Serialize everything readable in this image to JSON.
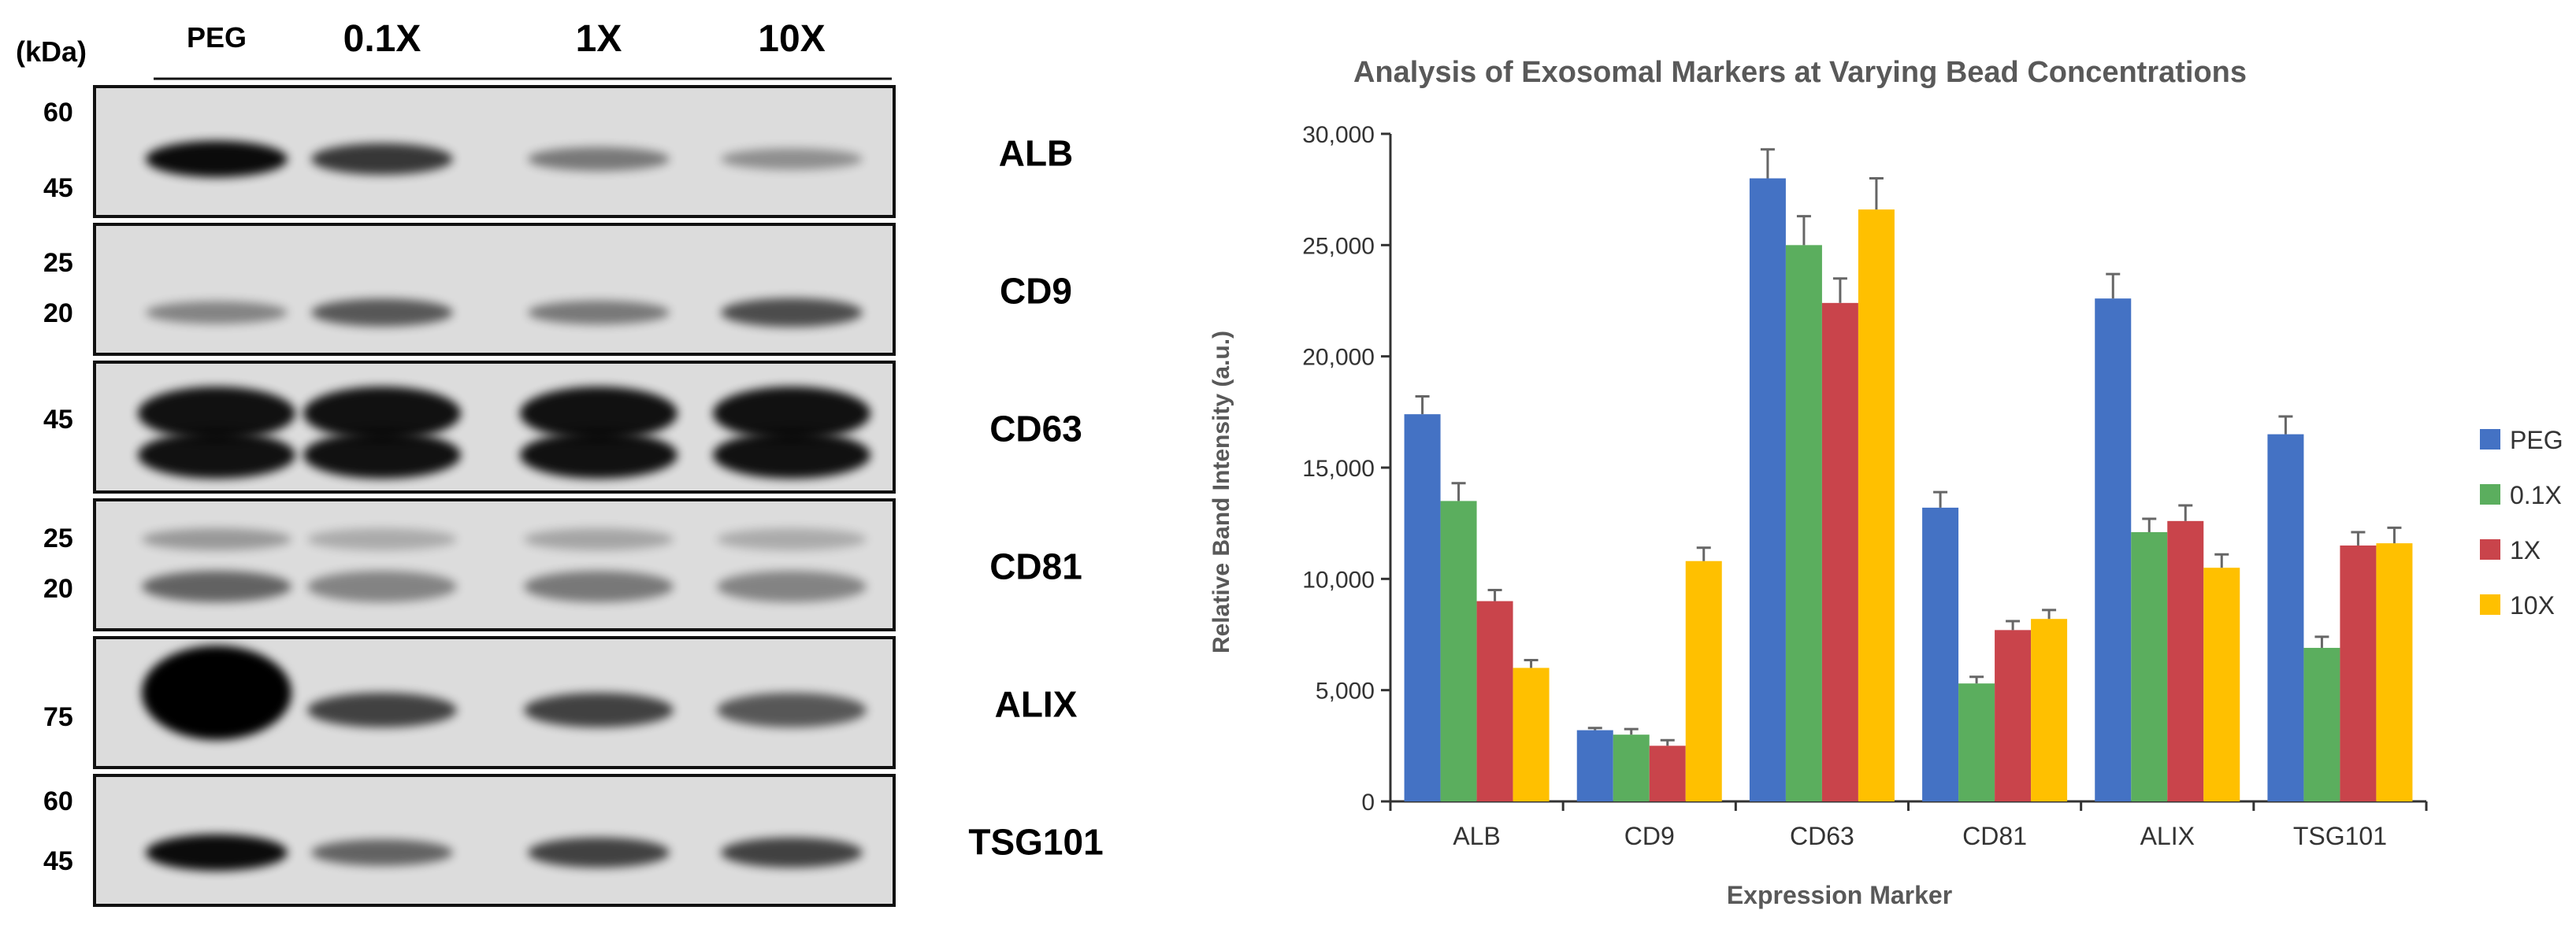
{
  "blot": {
    "kda_label": "(kDa)",
    "lane_labels": [
      "PEG",
      "0.1X",
      "1X",
      "10X"
    ],
    "panels": [
      {
        "name": "ALB",
        "markers": [
          "60",
          "45"
        ],
        "bands": [
          0.95,
          0.75,
          0.45,
          0.35
        ]
      },
      {
        "name": "CD9",
        "markers": [
          "25",
          "20"
        ],
        "bands": [
          0.4,
          0.6,
          0.45,
          0.65
        ]
      },
      {
        "name": "CD63",
        "markers": [
          "45"
        ],
        "bands": [
          1.0,
          1.0,
          1.0,
          1.0
        ]
      },
      {
        "name": "CD81",
        "markers": [
          "25",
          "20"
        ],
        "bands": [
          0.55,
          0.4,
          0.45,
          0.4
        ]
      },
      {
        "name": "ALIX",
        "markers": [
          "75"
        ],
        "bands": [
          1.0,
          0.7,
          0.7,
          0.6
        ]
      },
      {
        "name": "TSG101",
        "markers": [
          "60",
          "45"
        ],
        "bands": [
          0.95,
          0.55,
          0.7,
          0.7
        ]
      }
    ]
  },
  "chart_data": {
    "type": "bar",
    "title": "Analysis of Exosomal Markers at Varying Bead Concentrations",
    "xlabel": "Expression Marker",
    "ylabel": "Relative Band Intensity (a.u.)",
    "ylim": [
      0,
      30000
    ],
    "yticks": [
      0,
      5000,
      10000,
      15000,
      20000,
      25000,
      30000
    ],
    "ytick_labels": [
      "0",
      "5,000",
      "10,000",
      "15,000",
      "20,000",
      "25,000",
      "30,000"
    ],
    "categories": [
      "ALB",
      "CD9",
      "CD63",
      "CD81",
      "ALIX",
      "TSG101"
    ],
    "legend_position": "right",
    "series": [
      {
        "name": "PEG",
        "color": "#4472C4",
        "values": [
          17400,
          3200,
          28000,
          13200,
          22600,
          16500
        ],
        "errors": [
          800,
          100,
          1300,
          700,
          1100,
          800
        ]
      },
      {
        "name": "0.1X",
        "color": "#5BAE5E",
        "values": [
          13500,
          3000,
          25000,
          5300,
          12100,
          6900
        ],
        "errors": [
          800,
          250,
          1300,
          300,
          600,
          500
        ]
      },
      {
        "name": "1X",
        "color": "#C9444B",
        "values": [
          9000,
          2500,
          22400,
          7700,
          12600,
          11500
        ],
        "errors": [
          500,
          250,
          1100,
          400,
          700,
          600
        ]
      },
      {
        "name": "10X",
        "color": "#FFC000",
        "values": [
          6000,
          10800,
          26600,
          8200,
          10500,
          11600
        ],
        "errors": [
          350,
          600,
          1400,
          400,
          600,
          700
        ]
      }
    ]
  }
}
